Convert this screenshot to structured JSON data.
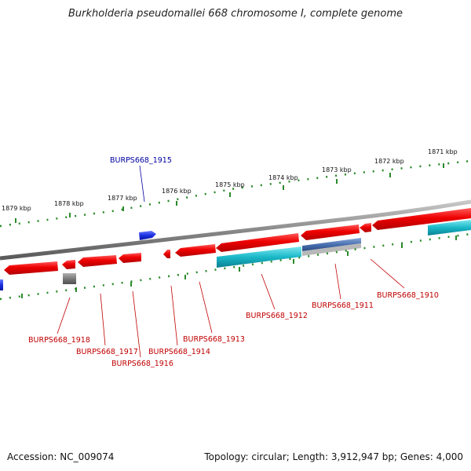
{
  "title": "Burkholderia pseudomallei 668 chromosome I, complete genome",
  "footer": {
    "accession": "Accession: NC_009074",
    "summary": "Topology: circular; Length: 3,912,947 bp; Genes: 4,000"
  },
  "kbp_labels": [
    "1879 kbp",
    "1878 kbp",
    "1877 kbp",
    "1876 kbp",
    "1875 kbp",
    "1874 kbp",
    "1873 kbp",
    "1872 kbp",
    "1871 kbp"
  ],
  "gene_labels": [
    {
      "text": "BURPS668_1915",
      "color": "#0000a0"
    },
    {
      "text": "BURPS668_1918",
      "color": "#c00000"
    },
    {
      "text": "BURPS668_1917",
      "color": "#c00000"
    },
    {
      "text": "BURPS668_1916",
      "color": "#c00000"
    },
    {
      "text": "BURPS668_1914",
      "color": "#c00000"
    },
    {
      "text": "BURPS668_1913",
      "color": "#c00000"
    },
    {
      "text": "BURPS668_1912",
      "color": "#c00000"
    },
    {
      "text": "BURPS668_1911",
      "color": "#c00000"
    },
    {
      "text": "BURPS668_1910",
      "color": "#c00000"
    }
  ],
  "colors": {
    "cds": "#e00000",
    "gene_blue": "#1a2ee0",
    "cyan": "#1ab8c8",
    "gray_feature": "#8a8a8a",
    "backbone": "#8c8c8c",
    "tick": "#2a8a2a"
  }
}
